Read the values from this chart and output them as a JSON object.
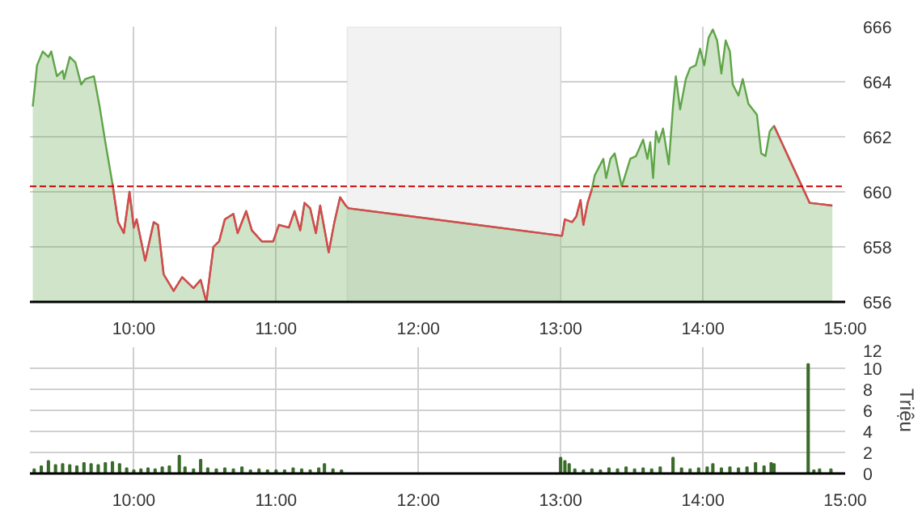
{
  "chart_data": [
    {
      "type": "area",
      "xlim": [
        9.27,
        15.0
      ],
      "ylim": [
        656,
        666
      ],
      "yticks": [
        656,
        658,
        660,
        662,
        664,
        666
      ],
      "xticks": [
        {
          "value": 10,
          "label": "10:00"
        },
        {
          "value": 11,
          "label": "11:00"
        },
        {
          "value": 12,
          "label": "12:00"
        },
        {
          "value": 13,
          "label": "13:00"
        },
        {
          "value": 14,
          "label": "14:00"
        },
        {
          "value": 15,
          "label": "15:00"
        }
      ],
      "grid": true,
      "x": [
        9.29,
        9.32,
        9.36,
        9.4,
        9.42,
        9.46,
        9.5,
        9.51,
        9.55,
        9.59,
        9.63,
        9.66,
        9.72,
        9.76,
        9.8,
        9.85,
        9.89,
        9.93,
        9.97,
        10.0,
        10.02,
        10.08,
        10.14,
        10.17,
        10.21,
        10.28,
        10.34,
        10.42,
        10.47,
        10.51,
        10.56,
        10.6,
        10.64,
        10.7,
        10.73,
        10.79,
        10.83,
        10.9,
        10.98,
        11.02,
        11.09,
        11.13,
        11.17,
        11.2,
        11.24,
        11.28,
        11.31,
        11.37,
        11.41,
        11.45,
        11.49,
        11.51,
        13.01,
        13.03,
        13.08,
        13.11,
        13.14,
        13.16,
        13.19,
        13.22,
        13.24,
        13.27,
        13.3,
        13.32,
        13.35,
        13.38,
        13.43,
        13.46,
        13.49,
        13.53,
        13.58,
        13.61,
        13.63,
        13.65,
        13.67,
        13.69,
        13.72,
        13.76,
        13.79,
        13.81,
        13.84,
        13.88,
        13.91,
        13.95,
        13.98,
        14.01,
        14.04,
        14.07,
        14.1,
        14.13,
        14.16,
        14.19,
        14.21,
        14.25,
        14.28,
        14.32,
        14.38,
        14.41,
        14.44,
        14.47,
        14.5,
        14.75,
        14.91
      ],
      "series": [
        {
          "type": "area",
          "color": "#5fa548",
          "values": [
            663.1,
            664.6,
            665.1,
            664.9,
            665.1,
            664.2,
            664.4,
            664.1,
            664.9,
            664.7,
            663.9,
            664.1,
            664.2,
            663.1,
            661.8,
            660.3,
            658.9,
            658.5,
            660.0,
            658.7,
            659.0,
            657.5,
            658.9,
            658.8,
            657.0,
            656.4,
            656.9,
            656.5,
            656.8,
            656.0,
            658.0,
            658.2,
            659.0,
            659.2,
            658.5,
            659.3,
            658.6,
            658.2,
            658.2,
            658.8,
            658.7,
            659.3,
            658.6,
            659.6,
            659.4,
            658.5,
            659.5,
            657.8,
            658.9,
            659.8,
            659.5,
            659.4,
            658.4,
            659.0,
            658.9,
            659.1,
            659.7,
            658.8,
            659.6,
            660.1,
            660.6,
            660.9,
            661.2,
            660.5,
            661.2,
            661.4,
            660.2,
            660.7,
            661.2,
            661.3,
            661.9,
            661.2,
            661.8,
            660.5,
            662.2,
            661.8,
            662.3,
            661.0,
            663.1,
            664.2,
            663.0,
            664.1,
            664.5,
            664.6,
            665.2,
            664.6,
            665.6,
            665.9,
            665.5,
            664.3,
            665.5,
            665.1,
            663.9,
            663.5,
            664.1,
            663.2,
            662.8,
            661.4,
            661.3,
            662.2,
            662.4,
            659.6,
            659.5
          ]
        },
        {
          "type": "line",
          "color": "#d9474f",
          "values": [
            null,
            null,
            null,
            null,
            null,
            null,
            null,
            null,
            null,
            null,
            null,
            null,
            null,
            null,
            null,
            660.3,
            658.9,
            658.5,
            660.0,
            658.7,
            659.0,
            657.5,
            658.9,
            658.8,
            657.0,
            656.4,
            656.9,
            656.5,
            656.8,
            656.0,
            658.0,
            658.2,
            659.0,
            659.2,
            658.5,
            659.3,
            658.6,
            658.2,
            658.2,
            658.8,
            658.7,
            659.3,
            658.6,
            659.6,
            659.4,
            658.5,
            659.5,
            657.8,
            658.9,
            659.8,
            659.5,
            659.4,
            658.4,
            659.0,
            658.9,
            659.1,
            659.7,
            658.8,
            659.6,
            660.1,
            null,
            null,
            null,
            null,
            null,
            null,
            null,
            null,
            null,
            null,
            null,
            null,
            null,
            null,
            null,
            null,
            null,
            null,
            null,
            null,
            null,
            null,
            null,
            null,
            null,
            null,
            null,
            null,
            null,
            null,
            null,
            null,
            null,
            null,
            null,
            null,
            null,
            null,
            null,
            null,
            662.4,
            659.6,
            659.5
          ]
        }
      ],
      "ref_lines": [
        {
          "axis": "y",
          "value": 660.2,
          "color": "#cc0000",
          "line_style": "dashed"
        }
      ],
      "bands": [
        {
          "axis": "x",
          "from": 11.5,
          "to": 13.0,
          "color": "#f2f2f2"
        }
      ]
    },
    {
      "type": "bar",
      "ylabel": "Triệu",
      "xlim": [
        9.27,
        15.0
      ],
      "ylim": [
        0,
        12
      ],
      "yticks": [
        0,
        2,
        4,
        6,
        8,
        10,
        12
      ],
      "xticks": [
        {
          "value": 10,
          "label": "10:00"
        },
        {
          "value": 11,
          "label": "11:00"
        },
        {
          "value": 12,
          "label": "12:00"
        },
        {
          "value": 13,
          "label": "13:00"
        },
        {
          "value": 14,
          "label": "14:00"
        },
        {
          "value": 15,
          "label": "15:00"
        }
      ],
      "grid": true,
      "color": "#3a6b2a",
      "x": [
        9.3,
        9.35,
        9.4,
        9.45,
        9.5,
        9.55,
        9.6,
        9.65,
        9.7,
        9.75,
        9.8,
        9.85,
        9.9,
        9.95,
        10.0,
        10.05,
        10.1,
        10.15,
        10.2,
        10.25,
        10.32,
        10.36,
        10.42,
        10.47,
        10.52,
        10.58,
        10.64,
        10.7,
        10.76,
        10.82,
        10.88,
        10.94,
        11.0,
        11.06,
        11.12,
        11.18,
        11.24,
        11.3,
        11.34,
        11.4,
        11.46,
        13.0,
        13.03,
        13.06,
        13.1,
        13.16,
        13.22,
        13.28,
        13.34,
        13.4,
        13.46,
        13.52,
        13.58,
        13.64,
        13.7,
        13.79,
        13.85,
        13.91,
        13.97,
        14.03,
        14.07,
        14.13,
        14.19,
        14.25,
        14.31,
        14.37,
        14.43,
        14.48,
        14.5,
        14.74,
        14.78,
        14.82,
        14.9
      ],
      "values": [
        0.4,
        0.7,
        1.2,
        0.8,
        0.9,
        0.8,
        0.7,
        1.0,
        0.9,
        0.8,
        1.0,
        1.1,
        0.9,
        0.5,
        0.3,
        0.4,
        0.5,
        0.4,
        0.6,
        0.7,
        1.7,
        0.6,
        0.4,
        1.3,
        0.5,
        0.4,
        0.5,
        0.4,
        0.6,
        0.3,
        0.4,
        0.3,
        0.3,
        0.3,
        0.5,
        0.4,
        0.3,
        0.5,
        0.9,
        0.4,
        0.3,
        1.5,
        1.2,
        0.9,
        0.4,
        0.3,
        0.4,
        0.3,
        0.5,
        0.4,
        0.6,
        0.4,
        0.5,
        0.4,
        0.6,
        1.5,
        0.5,
        0.4,
        0.5,
        0.6,
        0.9,
        0.5,
        0.6,
        0.5,
        0.6,
        1.0,
        0.7,
        1.0,
        0.9,
        10.4,
        0.3,
        0.4,
        0.4
      ]
    }
  ]
}
